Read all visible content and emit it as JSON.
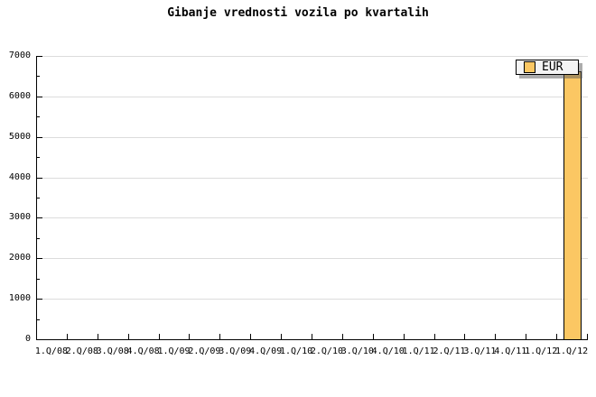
{
  "title": "Gibanje vrednosti vozila po kvartalih",
  "legend": {
    "label": "EUR"
  },
  "colors": {
    "bar_fill": "#FBC763",
    "bar_border": "#000000",
    "gridline": "#DCDCDC",
    "axis": "#000000",
    "legend_bg": "#F4F4F4",
    "legend_shadow": "#5A5A5A",
    "background": "#FFFFFF"
  },
  "chart_data": {
    "type": "bar",
    "title": "Gibanje vrednosti vozila po kvartalih",
    "xlabel": "",
    "ylabel": "",
    "categories": [
      "1.Q/08",
      "2.Q/08",
      "3.Q/08",
      "4.Q/08",
      "1.Q/09",
      "2.Q/09",
      "3.Q/09",
      "4.Q/09",
      "1.Q/10",
      "2.Q/10",
      "3.Q/10",
      "4.Q/10",
      "1.Q/11",
      "2.Q/11",
      "3.Q/11",
      "4.Q/11",
      "1.Q/12",
      "1.Q/12"
    ],
    "series": [
      {
        "name": "EUR",
        "values": [
          0,
          0,
          0,
          0,
          0,
          0,
          0,
          0,
          0,
          0,
          0,
          0,
          0,
          0,
          0,
          0,
          0,
          6600
        ]
      }
    ],
    "ylim": [
      0,
      7000
    ],
    "ytick_step": 1000,
    "yminor_step": 500,
    "ytick_labels": [
      "0",
      "1000",
      "2000",
      "3000",
      "4000",
      "5000",
      "6000",
      "7000"
    ],
    "grid": "horizontal-only",
    "legend_entries": [
      "EUR"
    ],
    "legend_position": "top-right"
  }
}
